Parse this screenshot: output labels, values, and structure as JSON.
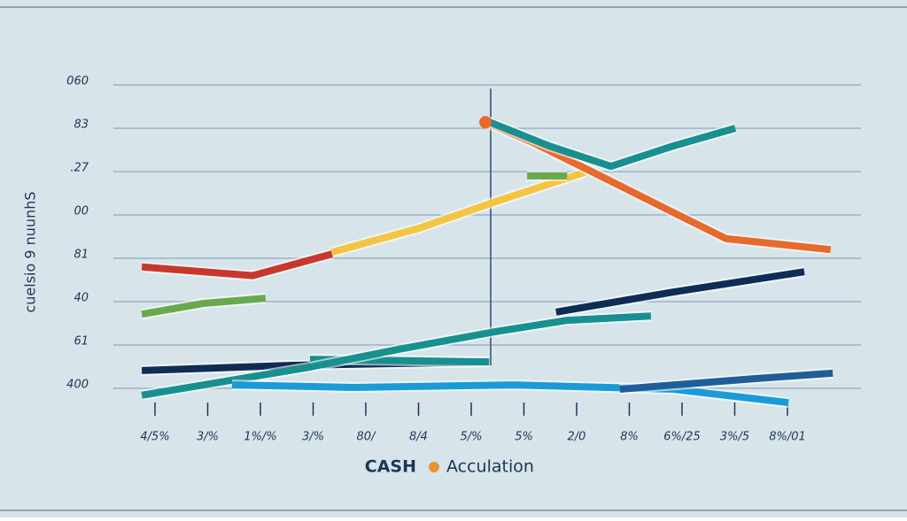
{
  "chart_data": {
    "type": "line",
    "y_label": "cuelsio 9 nuunhS",
    "legend_text": [
      "CASH",
      "Acculation"
    ],
    "legend_dot_color": "#f0922e",
    "grid": true,
    "xlim": [
      -0.5,
      13
    ],
    "xticks": [
      {
        "value": 0,
        "label": "4/5%"
      },
      {
        "value": 1,
        "label": "3/%"
      },
      {
        "value": 2,
        "label": "1%/%"
      },
      {
        "value": 3,
        "label": "3/%"
      },
      {
        "value": 4,
        "label": "80/"
      },
      {
        "value": 5,
        "label": "8/4"
      },
      {
        "value": 6,
        "label": "5/%"
      },
      {
        "value": 7,
        "label": "5%"
      },
      {
        "value": 8,
        "label": "2/0"
      },
      {
        "value": 9,
        "label": "8%"
      },
      {
        "value": 10,
        "label": "6%/25"
      },
      {
        "value": 11,
        "label": "3%/5"
      },
      {
        "value": 12,
        "label": "8%/01"
      }
    ],
    "ylim": [
      -0.5,
      7.2
    ],
    "yticks": [
      {
        "value": 0,
        "label": "400"
      },
      {
        "value": 1,
        "label": "61"
      },
      {
        "value": 2,
        "label": "40"
      },
      {
        "value": 3,
        "label": "81"
      },
      {
        "value": 4,
        "label": "00"
      },
      {
        "value": 5,
        "label": ".27"
      },
      {
        "value": 6,
        "label": "83"
      },
      {
        "value": 7,
        "label": "060"
      }
    ],
    "series": [
      {
        "color": "#c8372d",
        "x": [
          -0.25,
          1.85,
          3.36
        ],
        "values": [
          2.8,
          2.6,
          3.1
        ]
      },
      {
        "color": "#f5c542",
        "x": [
          3.36,
          5.0,
          6.47,
          8.15
        ],
        "values": [
          3.14,
          3.69,
          4.31,
          4.98
        ]
      },
      {
        "color": "#e8692c",
        "x": [
          6.27,
          7.14,
          8.32,
          9.83,
          10.84,
          12.82
        ],
        "values": [
          6.14,
          5.69,
          4.98,
          4.06,
          3.45,
          3.2
        ]
      },
      {
        "color": "#17908f",
        "x": [
          6.27,
          7.48,
          8.65,
          9.83,
          11.01
        ],
        "values": [
          6.18,
          5.59,
          5.12,
          5.59,
          6.0
        ]
      },
      {
        "color": "#6aa84f",
        "x": [
          -0.25,
          0.92,
          2.1
        ],
        "values": [
          1.71,
          1.96,
          2.08
        ]
      },
      {
        "color": "#6aa84f",
        "x": [
          7.06,
          7.82
        ],
        "values": [
          4.9,
          4.9
        ]
      },
      {
        "color": "#0f2c55",
        "x": [
          7.61,
          9.83,
          12.32
        ],
        "values": [
          1.76,
          2.22,
          2.69
        ]
      },
      {
        "color": "#0f2c55",
        "x": [
          -0.25,
          2.61,
          6.29
        ],
        "values": [
          0.41,
          0.53,
          0.61
        ]
      },
      {
        "color": "#17908f",
        "x": [
          2.94,
          6.34
        ],
        "values": [
          0.67,
          0.61
        ]
      },
      {
        "color": "#17908f",
        "x": [
          -0.25,
          2.94,
          4.62,
          6.47,
          7.82,
          9.41
        ],
        "values": [
          -0.16,
          0.49,
          0.9,
          1.31,
          1.57,
          1.67
        ]
      },
      {
        "color": "#1a9bd7",
        "x": [
          1.46,
          3.78,
          6.8,
          9.83,
          12.02
        ],
        "values": [
          0.08,
          0.02,
          0.08,
          -0.02,
          -0.33
        ]
      },
      {
        "color": "#1f5e99",
        "x": [
          8.82,
          11.34,
          12.86
        ],
        "values": [
          -0.02,
          0.22,
          0.35
        ]
      }
    ]
  }
}
